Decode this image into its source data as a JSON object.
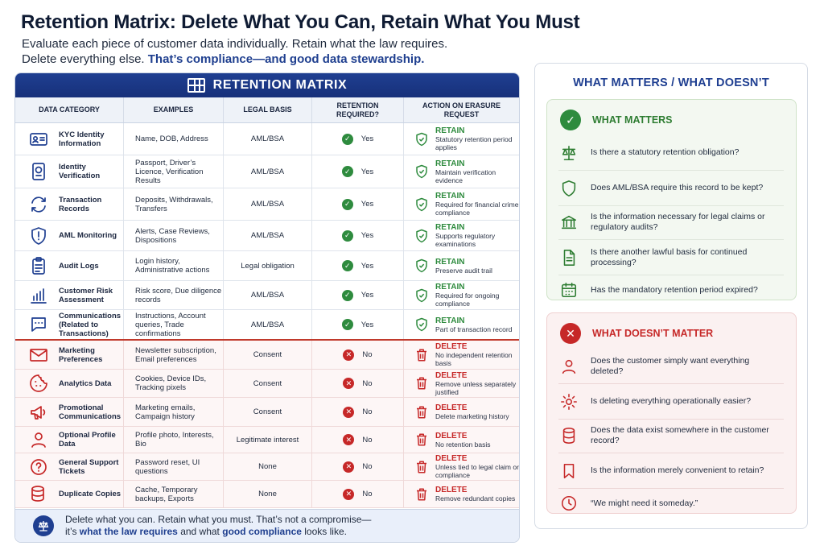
{
  "header": {
    "title": "Retention Matrix: Delete What You Can, Retain What You Must",
    "subtitle_line1": "Evaluate each piece of customer data individually. Retain what the law requires.",
    "subtitle_line2_plain": "Delete everything else.",
    "subtitle_line2_highlight": "That’s compliance—and good data stewardship."
  },
  "matrix": {
    "title": "RETENTION MATRIX",
    "columns": [
      "DATA CATEGORY",
      "EXAMPLES",
      "LEGAL BASIS",
      "RETENTION REQUIRED?",
      "ACTION ON ERASURE REQUEST"
    ],
    "rows": [
      {
        "category": "KYC Identity Information",
        "icon": "id-card-icon",
        "examples": "Name, DOB, Address",
        "basis": "AML/BSA",
        "required": "Yes",
        "action": "RETAIN",
        "action_detail": "Statutory retention period applies"
      },
      {
        "category": "Identity Verification",
        "icon": "passport-icon",
        "examples": "Passport, Driver’s Licence, Verification Results",
        "basis": "AML/BSA",
        "required": "Yes",
        "action": "RETAIN",
        "action_detail": "Maintain verification evidence"
      },
      {
        "category": "Transaction Records",
        "icon": "sync-arrows-icon",
        "examples": "Deposits, Withdrawals, Transfers",
        "basis": "AML/BSA",
        "required": "Yes",
        "action": "RETAIN",
        "action_detail": "Required for financial crime compliance"
      },
      {
        "category": "AML Monitoring",
        "icon": "shield-alert-icon",
        "examples": "Alerts, Case Reviews, Dispositions",
        "basis": "AML/BSA",
        "required": "Yes",
        "action": "RETAIN",
        "action_detail": "Supports regulatory examinations"
      },
      {
        "category": "Audit Logs",
        "icon": "clipboard-icon",
        "examples": "Login history, Administrative actions",
        "basis": "Legal obligation",
        "required": "Yes",
        "action": "RETAIN",
        "action_detail": "Preserve audit trail"
      },
      {
        "category": "Customer Risk Assessment",
        "icon": "bar-chart-icon",
        "examples": "Risk score, Due diligence records",
        "basis": "AML/BSA",
        "required": "Yes",
        "action": "RETAIN",
        "action_detail": "Required for ongoing compliance"
      },
      {
        "category": "Communications (Related to Transactions)",
        "icon": "chat-bubble-icon",
        "examples": "Instructions, Account queries, Trade confirmations",
        "basis": "AML/BSA",
        "required": "Yes",
        "action": "RETAIN",
        "action_detail": "Part of transaction record"
      },
      {
        "category": "Marketing Preferences",
        "icon": "envelope-icon",
        "examples": "Newsletter subscription, Email preferences",
        "basis": "Consent",
        "required": "No",
        "action": "DELETE",
        "action_detail": "No independent retention basis"
      },
      {
        "category": "Analytics Data",
        "icon": "cookie-icon",
        "examples": "Cookies, Device IDs, Tracking pixels",
        "basis": "Consent",
        "required": "No",
        "action": "DELETE",
        "action_detail": "Remove unless separately justified"
      },
      {
        "category": "Promotional Communications",
        "icon": "megaphone-icon",
        "examples": "Marketing emails, Campaign history",
        "basis": "Consent",
        "required": "No",
        "action": "DELETE",
        "action_detail": "Delete marketing history"
      },
      {
        "category": "Optional Profile Data",
        "icon": "person-icon",
        "examples": "Profile photo, Interests, Bio",
        "basis": "Legitimate interest",
        "required": "No",
        "action": "DELETE",
        "action_detail": "No retention basis"
      },
      {
        "category": "General Support Tickets",
        "icon": "question-bubble-icon",
        "examples": "Password reset, UI questions",
        "basis": "None",
        "required": "No",
        "action": "DELETE",
        "action_detail": "Unless tied to legal claim or compliance"
      },
      {
        "category": "Duplicate Copies",
        "icon": "database-copy-icon",
        "examples": "Cache, Temporary backups, Exports",
        "basis": "None",
        "required": "No",
        "action": "DELETE",
        "action_detail": "Remove redundant copies"
      }
    ],
    "footer": {
      "line1": "Delete what you can. Retain what you must. That’s not a compromise—",
      "line2_a": "it’s",
      "line2_b": "what the law requires",
      "line2_c": "and what",
      "line2_d": "good compliance",
      "line2_e": "looks like."
    }
  },
  "panel": {
    "title": "WHAT MATTERS / WHAT DOESN’T",
    "matters": {
      "heading": "WHAT MATTERS",
      "items": [
        {
          "icon": "scales-icon",
          "text": "Is there a statutory retention obligation?"
        },
        {
          "icon": "shield-icon",
          "text": "Does AML/BSA require this record to be kept?"
        },
        {
          "icon": "bank-icon",
          "text": "Is the information necessary for legal claims or regulatory audits?"
        },
        {
          "icon": "document-icon",
          "text": "Is there another lawful basis for continued processing?"
        },
        {
          "icon": "calendar-icon",
          "text": "Has the mandatory retention period expired?"
        }
      ]
    },
    "doesnt": {
      "heading": "WHAT DOESN’T MATTER",
      "items": [
        {
          "icon": "person-icon",
          "text": "Does the customer simply want everything deleted?"
        },
        {
          "icon": "gear-icon",
          "text": "Is deleting everything operationally easier?"
        },
        {
          "icon": "database-icon",
          "text": "Does the data exist somewhere in the customer record?"
        },
        {
          "icon": "bookmark-icon",
          "text": "Is the information merely convenient to retain?"
        },
        {
          "icon": "clock-icon",
          "text": "“We might need it someday.”"
        }
      ]
    }
  },
  "colors": {
    "navy": "#1f3f91",
    "retain_green": "#2e8b3e",
    "delete_red": "#c62828"
  }
}
